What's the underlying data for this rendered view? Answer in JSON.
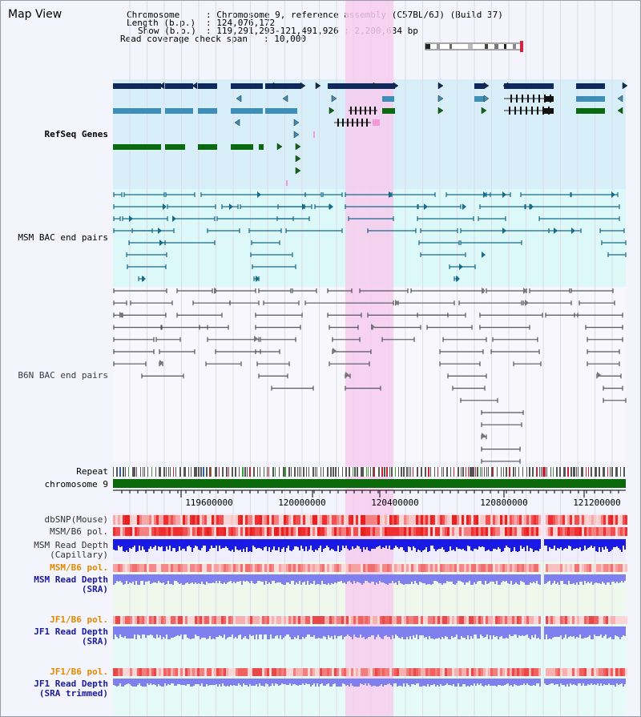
{
  "view": {
    "title": "Map View"
  },
  "info": {
    "chromosome_key": "Chromosome     ",
    "chromosome_val": ": Chromosome 9, reference assembly (C57BL/6J) (Build 37)",
    "length_key": "Length (b.p.)  ",
    "length_val": ": 124,076,172",
    "show_key": "Show (b.p.)  ",
    "show_val": ": 119,291,293-121,491,926 : 2,200,634 bp",
    "coverage_key": "Read coverage check span ",
    "coverage_val": ": 10,000"
  },
  "tracks": {
    "refseq": "RefSeq Genes",
    "msm_bac": "MSM BAC end pairs",
    "b6n_bac": "B6N BAC end pairs",
    "repeat": "Repeat",
    "chromosome": "chromosome 9",
    "dbsnp": "dbSNP(Mouse)",
    "msm_b6_pol": "MSM/B6 pol.",
    "msm_depth_cap_1": "MSM Read Depth",
    "msm_depth_cap_2": "(Capillary)",
    "msm_b6_pol_sra": "MSM/B6 pol.",
    "msm_depth_sra_1": "MSM Read Depth",
    "msm_depth_sra_2": "(SRA)",
    "jf1_b6_pol": "JF1/B6 pol.",
    "jf1_depth_sra_1": "JF1 Read Depth",
    "jf1_depth_sra_2": "(SRA)",
    "jf1_b6_pol_trim": "JF1/B6 pol.",
    "jf1_depth_trim_1": "JF1 Read Depth",
    "jf1_depth_trim_2": "(SRA trimmed)"
  },
  "axis": {
    "ticks": [
      "119600000",
      "120000000",
      "120400000",
      "120800000",
      "121200000"
    ]
  },
  "colors": {
    "highlight": "#f7cdee",
    "refseq_bg": "#d8eef8",
    "msm_bac_bg": "#dcf8f8",
    "gene_dark": "#0e2a5c",
    "gene_mid": "#3d8fb8",
    "gene_green": "#0a6a10",
    "chromosome": "#0a6a0a",
    "snp_red": "#f4443c",
    "depth_blue": "#1a1ae6",
    "depth_light": "#7f7ff0",
    "label_blue": "#1a1a9e",
    "label_orange": "#e08a00",
    "label_msm_bac": "#0e5a8a"
  }
}
